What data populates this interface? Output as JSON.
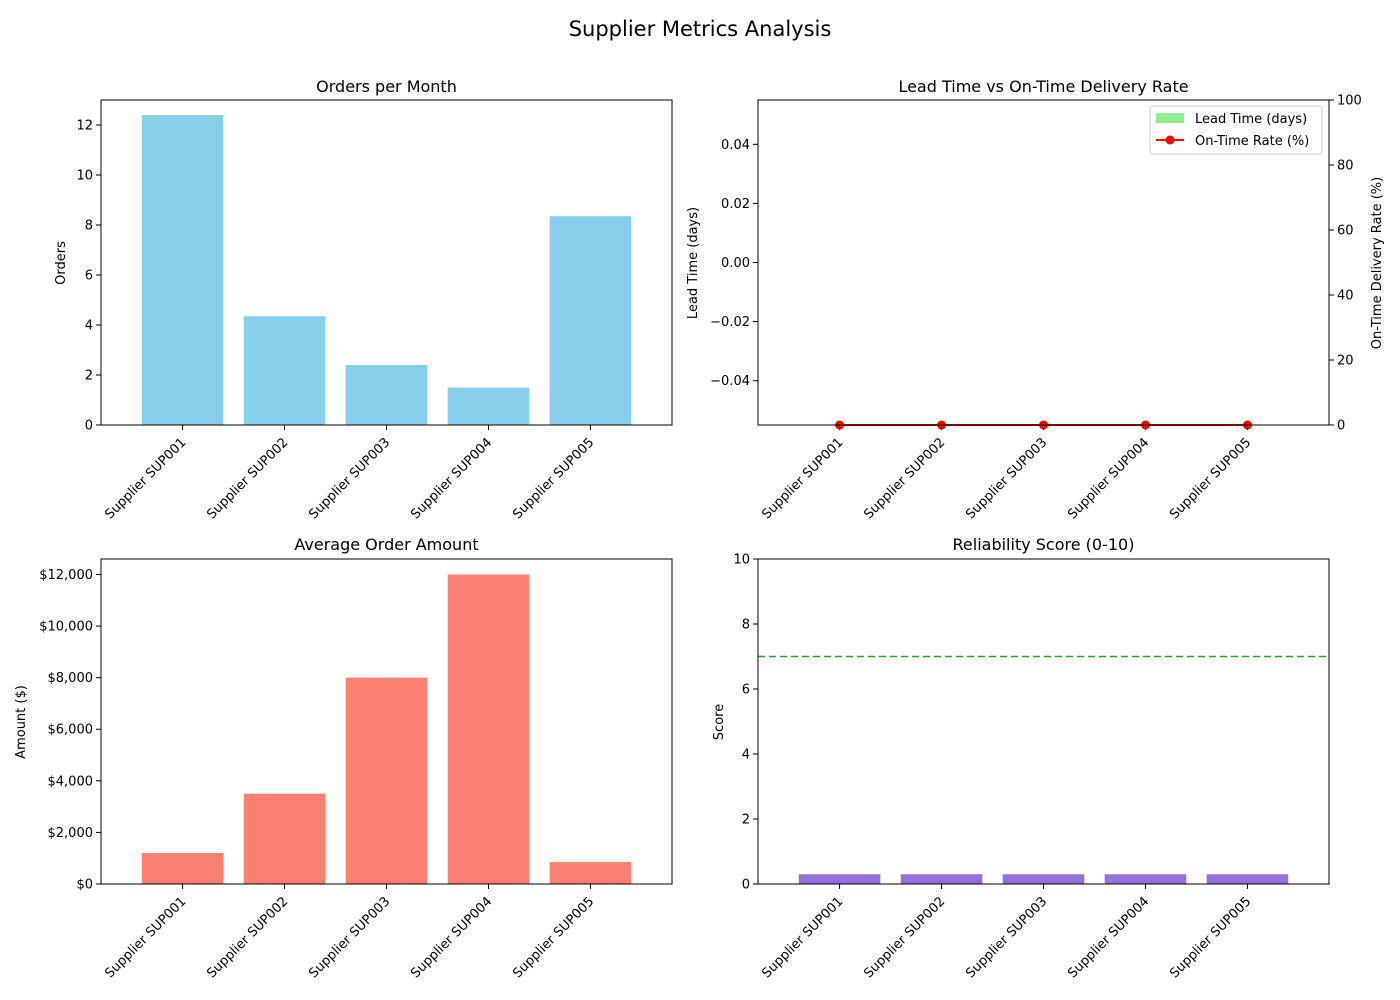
{
  "figure": {
    "title": "Supplier Metrics Analysis"
  },
  "colors": {
    "orders": "#87ceeb",
    "lead_time": "#90ee90",
    "on_time": "#ff0000",
    "amount": "#fa8072",
    "reliability": "#9370db",
    "threshold": "#2ca02c"
  },
  "chart_data": [
    {
      "type": "bar",
      "title": "Orders per Month",
      "xlabel": "",
      "ylabel": "Orders",
      "categories": [
        "Supplier SUP001",
        "Supplier SUP002",
        "Supplier SUP003",
        "Supplier SUP004",
        "Supplier SUP005"
      ],
      "values": [
        12.4,
        4.35,
        2.4,
        1.5,
        8.35
      ],
      "ylim": [
        0,
        13
      ],
      "yticks": [
        0,
        2,
        4,
        6,
        8,
        10,
        12
      ],
      "ytick_labels": [
        "0",
        "2",
        "4",
        "6",
        "8",
        "10",
        "12"
      ],
      "grid": false
    },
    {
      "type": "bar",
      "title": "Lead Time vs On-Time Delivery Rate",
      "xlabel": "",
      "ylabel": "Lead Time (days)",
      "y2label": "On-Time Delivery Rate (%)",
      "categories": [
        "Supplier SUP001",
        "Supplier SUP002",
        "Supplier SUP003",
        "Supplier SUP004",
        "Supplier SUP005"
      ],
      "series": [
        {
          "name": "Lead Time (days)",
          "type": "bar",
          "axis": "left",
          "values": [
            0,
            0,
            0,
            0,
            0
          ]
        },
        {
          "name": "On-Time Rate (%)",
          "type": "line",
          "axis": "right",
          "values": [
            0,
            0,
            0,
            0,
            0
          ]
        }
      ],
      "ylim": [
        -0.055,
        0.055
      ],
      "yticks": [
        -0.04,
        -0.02,
        0.0,
        0.02,
        0.04
      ],
      "ytick_labels": [
        "−0.04",
        "−0.02",
        "0.00",
        "0.02",
        "0.04"
      ],
      "y2lim": [
        0,
        100
      ],
      "y2ticks": [
        0,
        20,
        40,
        60,
        80,
        100
      ],
      "y2tick_labels": [
        "0",
        "20",
        "40",
        "60",
        "80",
        "100"
      ],
      "legend": "top-right",
      "grid": false
    },
    {
      "type": "bar",
      "title": "Average Order Amount",
      "xlabel": "",
      "ylabel": "Amount ($)",
      "categories": [
        "Supplier SUP001",
        "Supplier SUP002",
        "Supplier SUP003",
        "Supplier SUP004",
        "Supplier SUP005"
      ],
      "values": [
        1200,
        3500,
        8000,
        12000,
        850
      ],
      "ylim": [
        0,
        12600
      ],
      "yticks": [
        0,
        2000,
        4000,
        6000,
        8000,
        10000,
        12000
      ],
      "ytick_labels": [
        "$0",
        "$2,000",
        "$4,000",
        "$6,000",
        "$8,000",
        "$10,000",
        "$12,000"
      ],
      "grid": false
    },
    {
      "type": "bar",
      "title": "Reliability Score (0-10)",
      "xlabel": "",
      "ylabel": "Score",
      "categories": [
        "Supplier SUP001",
        "Supplier SUP002",
        "Supplier SUP003",
        "Supplier SUP004",
        "Supplier SUP005"
      ],
      "values": [
        0.3,
        0.3,
        0.3,
        0.3,
        0.3
      ],
      "threshold": 7,
      "ylim": [
        0,
        10
      ],
      "yticks": [
        0,
        2,
        4,
        6,
        8,
        10
      ],
      "ytick_labels": [
        "0",
        "2",
        "4",
        "6",
        "8",
        "10"
      ],
      "grid": false
    }
  ]
}
